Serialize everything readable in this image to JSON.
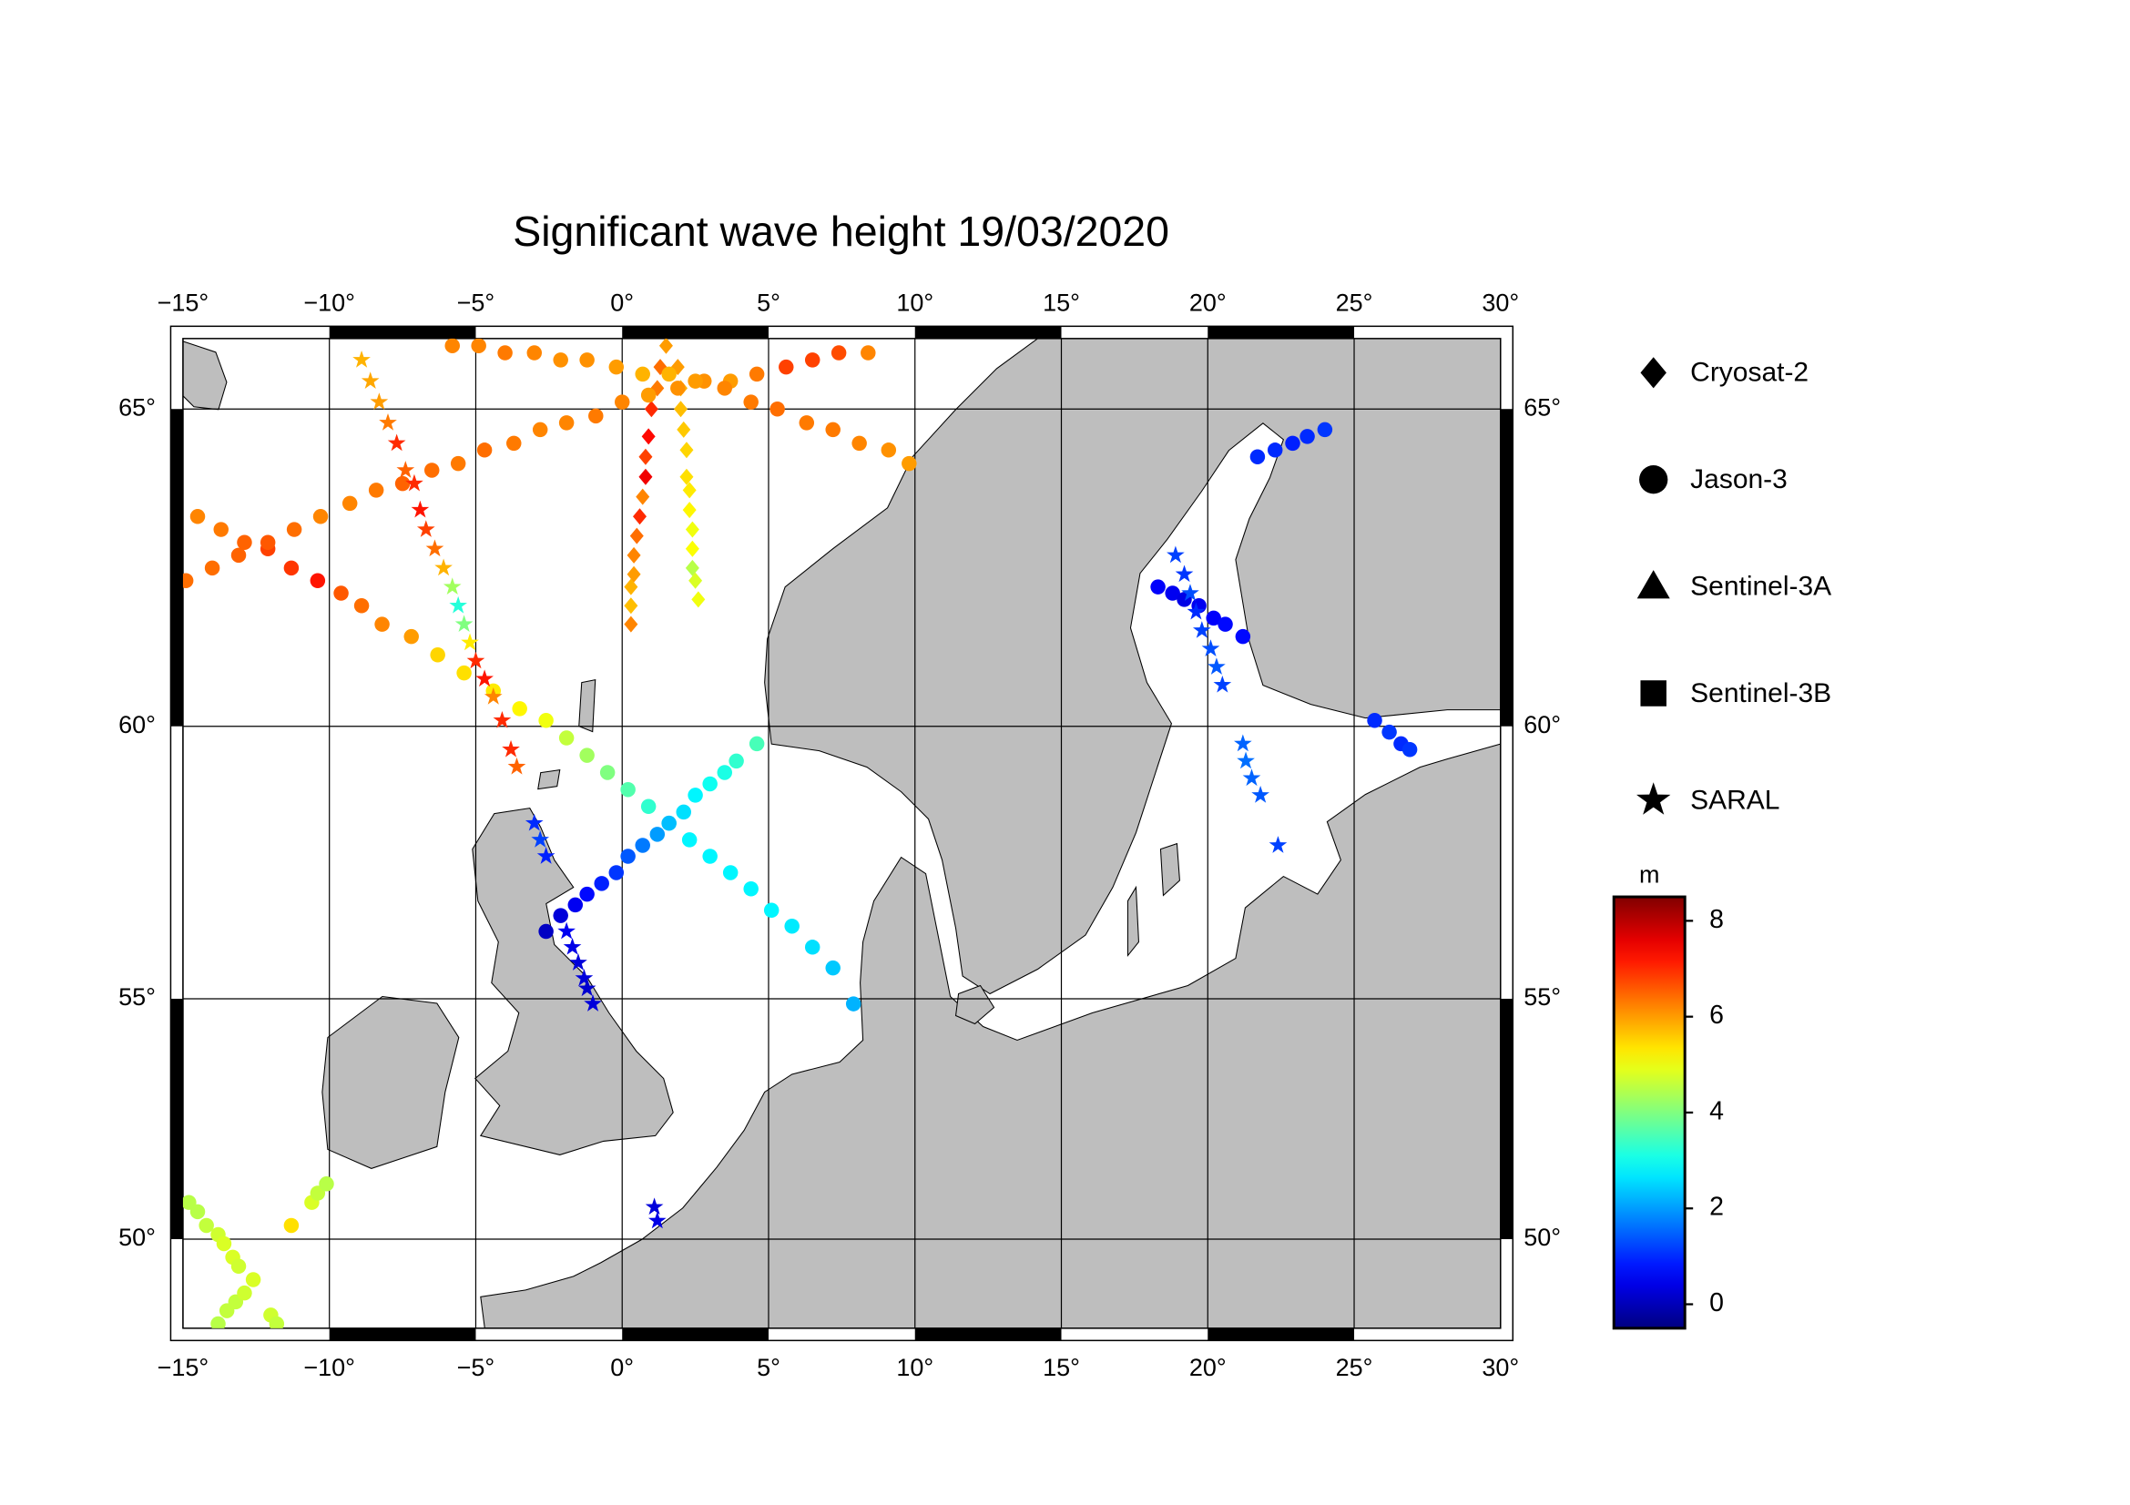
{
  "chart_data": {
    "type": "scatter",
    "title": "Significant wave height 19/03/2020",
    "projection": "mercator",
    "xlim": [
      -15,
      30
    ],
    "ylim": [
      48,
      66
    ],
    "xticks": [
      {
        "value": -15,
        "label": "−15°"
      },
      {
        "value": -10,
        "label": "−10°"
      },
      {
        "value": -5,
        "label": "−5°"
      },
      {
        "value": 0,
        "label": "0°"
      },
      {
        "value": 5,
        "label": "5°"
      },
      {
        "value": 10,
        "label": "10°"
      },
      {
        "value": 15,
        "label": "15°"
      },
      {
        "value": 20,
        "label": "20°"
      },
      {
        "value": 25,
        "label": "25°"
      },
      {
        "value": 30,
        "label": "30°"
      }
    ],
    "yticks": [
      {
        "value": 50,
        "label": "50°"
      },
      {
        "value": 55,
        "label": "55°"
      },
      {
        "value": 60,
        "label": "60°"
      },
      {
        "value": 65,
        "label": "65°"
      }
    ],
    "grid": true,
    "colormap": "jet",
    "colorbar_label": "m",
    "clim": [
      -0.5,
      8.5
    ],
    "cticks": [
      0,
      2,
      4,
      6,
      8
    ],
    "legend_position": "right",
    "series": [
      {
        "name": "Cryosat-2",
        "marker": "diamond",
        "x": [
          1.5,
          1.3,
          1.2,
          1.0,
          0.9,
          0.8,
          0.8,
          0.7,
          0.6,
          0.5,
          0.4,
          0.4,
          0.3,
          0.3,
          0.3,
          1.9,
          2.0,
          2.0,
          2.1,
          2.2,
          2.2,
          2.3,
          2.3,
          2.4,
          2.4,
          2.4,
          2.5,
          2.6
        ],
        "y": [
          65.9,
          65.6,
          65.3,
          65.0,
          64.6,
          64.3,
          64.0,
          63.7,
          63.4,
          63.1,
          62.8,
          62.5,
          62.3,
          62.0,
          61.7,
          65.6,
          65.3,
          65.0,
          64.7,
          64.4,
          64.0,
          63.8,
          63.5,
          63.2,
          62.9,
          62.6,
          62.4,
          62.1
        ],
        "values": [
          6.0,
          6.4,
          6.3,
          7.0,
          7.3,
          6.8,
          7.5,
          6.2,
          7.0,
          6.4,
          6.2,
          6.0,
          5.8,
          5.7,
          6.2,
          6.0,
          5.8,
          5.7,
          5.6,
          5.5,
          5.4,
          5.3,
          5.2,
          5.0,
          5.1,
          4.5,
          4.8,
          5.0
        ]
      },
      {
        "name": "Jason-3",
        "marker": "circle",
        "x": [
          -14.5,
          -13.7,
          -12.9,
          -12.1,
          -11.3,
          -10.4,
          -9.6,
          -8.9,
          -8.2,
          -7.2,
          -6.3,
          -5.4,
          -4.4,
          -3.5,
          -2.6,
          -1.9,
          -1.2,
          -0.5,
          0.2,
          0.9,
          1.6,
          2.3,
          3.0,
          3.7,
          4.4,
          5.1,
          5.8,
          6.5,
          7.2,
          7.9,
          -14.9,
          -14.0,
          -13.1,
          -12.1,
          -11.2,
          -10.3,
          -9.3,
          -8.4,
          -7.5,
          -6.5,
          -5.6,
          -4.7,
          -3.7,
          -2.8,
          -1.9,
          -0.9,
          0.0,
          0.9,
          1.9,
          2.8,
          3.7,
          4.6,
          5.6,
          6.5,
          7.4,
          8.4,
          -5.8,
          -4.9,
          -4.0,
          -3.0,
          -2.1,
          -1.2,
          -0.2,
          0.7,
          1.6,
          2.5,
          3.5,
          4.4,
          5.3,
          6.3,
          7.2,
          8.1,
          9.1,
          9.8,
          -2.6,
          -2.1,
          -1.6,
          -1.2,
          -0.7,
          -0.2,
          0.2,
          0.7,
          1.2,
          1.6,
          2.1,
          2.5,
          3.0,
          3.5,
          3.9,
          4.6,
          21.7,
          22.3,
          22.9,
          23.4,
          24.0,
          18.3,
          18.8,
          19.2,
          19.7,
          20.2,
          20.6,
          21.2,
          25.7,
          26.2,
          26.6,
          26.9,
          -14.8,
          -14.5,
          -14.2,
          -13.8,
          -13.6,
          -13.3,
          -13.1,
          -13.8,
          -13.5,
          -13.2,
          -12.9,
          -12.6,
          -12.0,
          -11.8,
          -11.3,
          -10.6,
          -10.4,
          -10.1
        ],
        "y": [
          63.4,
          63.2,
          63.0,
          62.9,
          62.6,
          62.4,
          62.2,
          62.0,
          61.7,
          61.5,
          61.2,
          60.9,
          60.6,
          60.3,
          60.1,
          59.8,
          59.5,
          59.2,
          58.9,
          58.6,
          58.3,
          58.0,
          57.7,
          57.4,
          57.1,
          56.7,
          56.4,
          56.0,
          55.6,
          54.9,
          62.4,
          62.6,
          62.8,
          63.0,
          63.2,
          63.4,
          63.6,
          63.8,
          63.9,
          64.1,
          64.2,
          64.4,
          64.5,
          64.7,
          64.8,
          64.9,
          65.1,
          65.2,
          65.3,
          65.4,
          65.4,
          65.5,
          65.6,
          65.7,
          65.8,
          65.8,
          65.9,
          65.9,
          65.8,
          65.8,
          65.7,
          65.7,
          65.6,
          65.5,
          65.5,
          65.4,
          65.3,
          65.1,
          65.0,
          64.8,
          64.7,
          64.5,
          64.4,
          64.2,
          56.3,
          56.6,
          56.8,
          57.0,
          57.2,
          57.4,
          57.7,
          57.9,
          58.1,
          58.3,
          58.5,
          58.8,
          59.0,
          59.2,
          59.4,
          59.7,
          64.3,
          64.4,
          64.5,
          64.6,
          64.7,
          62.3,
          62.2,
          62.1,
          62.0,
          61.8,
          61.7,
          61.5,
          60.1,
          59.9,
          59.7,
          59.6,
          50.8,
          50.6,
          50.3,
          50.1,
          49.9,
          49.6,
          49.4,
          48.1,
          48.4,
          48.6,
          48.8,
          49.1,
          48.3,
          48.1,
          50.3,
          50.8,
          51.0,
          51.2
        ],
        "values": [
          6.2,
          6.3,
          6.5,
          6.8,
          6.9,
          7.2,
          6.6,
          6.4,
          6.2,
          6.0,
          5.5,
          5.4,
          5.3,
          5.2,
          5.0,
          4.6,
          4.3,
          4.0,
          3.6,
          3.3,
          3.0,
          2.8,
          2.8,
          2.8,
          2.8,
          2.8,
          2.7,
          2.6,
          2.4,
          2.2,
          6.4,
          6.4,
          6.5,
          6.6,
          6.4,
          6.2,
          6.2,
          6.3,
          6.5,
          6.4,
          6.3,
          6.4,
          6.3,
          6.2,
          6.2,
          6.3,
          6.2,
          6.0,
          6.1,
          6.1,
          6.0,
          6.3,
          6.8,
          6.8,
          6.7,
          6.2,
          6.2,
          6.2,
          6.3,
          6.2,
          6.1,
          6.1,
          6.0,
          5.8,
          5.8,
          6.0,
          6.2,
          6.3,
          6.4,
          6.3,
          6.3,
          6.2,
          6.1,
          6.0,
          0.1,
          0.3,
          0.5,
          0.7,
          0.9,
          1.1,
          1.4,
          1.7,
          2.0,
          2.3,
          2.6,
          2.8,
          3.0,
          3.1,
          3.3,
          3.5,
          1.0,
          1.0,
          0.9,
          1.0,
          1.1,
          0.6,
          0.5,
          0.4,
          0.5,
          0.6,
          0.7,
          0.7,
          1.0,
          1.1,
          1.0,
          1.1,
          4.5,
          4.5,
          4.6,
          4.7,
          4.8,
          4.8,
          4.7,
          4.5,
          4.6,
          4.6,
          4.7,
          4.8,
          4.7,
          4.6,
          5.4,
          4.8,
          4.6,
          4.5
        ]
      },
      {
        "name": "Sentinel-3A",
        "marker": "triangle",
        "x": [],
        "y": [],
        "values": []
      },
      {
        "name": "Sentinel-3B",
        "marker": "square",
        "x": [],
        "y": [],
        "values": []
      },
      {
        "name": "SARAL",
        "marker": "star",
        "x": [
          -8.9,
          -8.6,
          -8.3,
          -8.0,
          -7.7,
          -7.4,
          -7.1,
          -6.9,
          -6.7,
          -6.4,
          -6.1,
          -5.8,
          -5.6,
          -5.4,
          -5.2,
          -5.0,
          -4.7,
          -4.4,
          -4.1,
          -3.8,
          -3.6,
          -3.0,
          -2.8,
          -2.6,
          -1.9,
          -1.7,
          -1.5,
          -1.3,
          -1.2,
          -1.0,
          1.1,
          1.2,
          18.9,
          19.2,
          19.4,
          19.6,
          19.8,
          20.1,
          20.3,
          20.5,
          21.2,
          21.3,
          21.5,
          21.8,
          22.4
        ],
        "y": [
          65.7,
          65.4,
          65.1,
          64.8,
          64.5,
          64.1,
          63.9,
          63.5,
          63.2,
          62.9,
          62.6,
          62.3,
          62.0,
          61.7,
          61.4,
          61.1,
          60.8,
          60.5,
          60.1,
          59.6,
          59.3,
          58.3,
          58.0,
          57.7,
          56.3,
          56.0,
          55.7,
          55.4,
          55.2,
          54.9,
          50.7,
          50.4,
          62.8,
          62.5,
          62.2,
          61.9,
          61.6,
          61.3,
          61.0,
          60.7,
          59.7,
          59.4,
          59.1,
          58.8,
          57.9
        ],
        "values": [
          5.8,
          5.9,
          6.0,
          6.3,
          7.0,
          6.5,
          7.0,
          7.2,
          6.8,
          6.4,
          5.8,
          4.3,
          3.2,
          4.0,
          5.3,
          7.0,
          7.2,
          6.2,
          7.0,
          7.0,
          6.5,
          1.0,
          1.2,
          0.9,
          0.5,
          0.4,
          0.3,
          0.3,
          0.2,
          0.3,
          0.3,
          0.4,
          1.2,
          1.1,
          1.3,
          1.0,
          1.2,
          1.3,
          1.4,
          1.2,
          1.5,
          1.6,
          1.5,
          1.4,
          1.2
        ]
      }
    ]
  }
}
